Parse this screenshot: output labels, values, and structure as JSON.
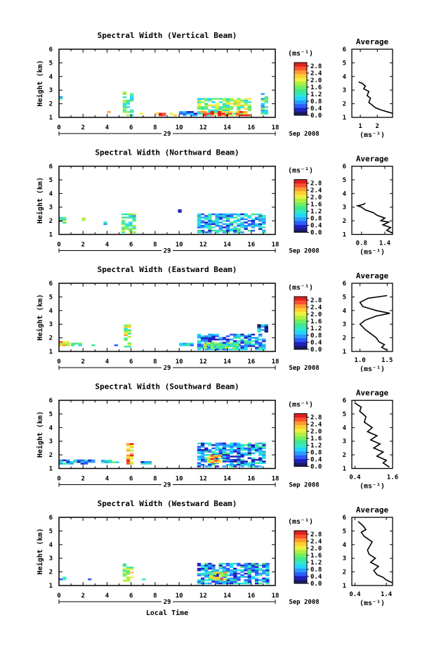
{
  "figure": {
    "xlabel": "Local Time",
    "date_label": "Sep 2008",
    "day_label": "29",
    "colorbar_unit": "(ms⁻¹)",
    "avg_unit": "(ms⁻¹)",
    "avg_title": "Average",
    "colormap": [
      "#1a1a66",
      "#2020c0",
      "#2a5cff",
      "#2a9cff",
      "#20d6ff",
      "#30e8c8",
      "#40e890",
      "#70f060",
      "#b0f040",
      "#f0f040",
      "#ffd030",
      "#ff9a30",
      "#ff5030",
      "#e02020"
    ]
  },
  "chart_data": [
    {
      "type": "heatmap",
      "title": "Spectral Width (Vertical Beam)",
      "ylabel": "Height (km)",
      "xlim": [
        0,
        18
      ],
      "ylim": [
        1,
        6
      ],
      "x_ticks": [
        0,
        2,
        4,
        6,
        8,
        10,
        12,
        14,
        16,
        18
      ],
      "y_ticks": [
        1,
        2,
        3,
        4,
        5,
        6
      ],
      "colorbar_ticks": [
        "0.0",
        "0.4",
        "0.8",
        "1.2",
        "1.6",
        "2.0",
        "2.4",
        "2.8"
      ],
      "colorbar_range": [
        0,
        3.0
      ],
      "clusters": [
        {
          "x": [
            0.0,
            0.3
          ],
          "y": [
            2.2,
            2.5
          ],
          "v": 1.2
        },
        {
          "x": [
            4.0,
            4.3
          ],
          "y": [
            1.1,
            1.4
          ],
          "v": 2.6
        },
        {
          "x": [
            5.3,
            6.1
          ],
          "y": [
            1.1,
            2.9
          ],
          "v": 1.4
        },
        {
          "x": [
            6.7,
            7.0
          ],
          "y": [
            1.1,
            1.3
          ],
          "v": 2.2
        },
        {
          "x": [
            8.0,
            9.6
          ],
          "y": [
            1.1,
            1.3
          ],
          "v": 2.6
        },
        {
          "x": [
            10.0,
            11.5
          ],
          "y": [
            1.1,
            1.4
          ],
          "v": 0.9
        },
        {
          "x": [
            11.5,
            15.9
          ],
          "y": [
            1.1,
            2.4
          ],
          "v": 1.6
        },
        {
          "x": [
            11.7,
            15.9
          ],
          "y": [
            1.1,
            1.4
          ],
          "v": 2.8
        },
        {
          "x": [
            16.8,
            17.3
          ],
          "y": [
            1.1,
            2.7
          ],
          "v": 1.2
        }
      ],
      "average": {
        "xlim": [
          0.5,
          2.9
        ],
        "x_ticks": [
          "1",
          "2"
        ],
        "x_tick_values": [
          1,
          2
        ],
        "x": [
          2.9,
          2.6,
          2.2,
          1.9,
          1.7,
          1.5,
          1.6,
          1.4,
          1.5,
          1.2,
          1.3,
          1.1,
          0.9
        ],
        "y": [
          1.3,
          1.4,
          1.55,
          1.7,
          1.9,
          2.1,
          2.4,
          2.6,
          2.9,
          3.1,
          3.3,
          3.5,
          3.6
        ]
      }
    },
    {
      "type": "heatmap",
      "title": "Spectral Width (Northward Beam)",
      "ylabel": "Height (km)",
      "xlim": [
        0,
        18
      ],
      "ylim": [
        1,
        6
      ],
      "x_ticks": [
        0,
        2,
        4,
        6,
        8,
        10,
        12,
        14,
        16,
        18
      ],
      "y_ticks": [
        1,
        2,
        3,
        4,
        5,
        6
      ],
      "colorbar_ticks": [
        "0.0",
        "0.4",
        "0.8",
        "1.2",
        "1.6",
        "2.0",
        "2.4",
        "2.8"
      ],
      "colorbar_range": [
        0,
        3.0
      ],
      "clusters": [
        {
          "x": [
            0.0,
            0.5
          ],
          "y": [
            1.8,
            2.2
          ],
          "v": 1.4
        },
        {
          "x": [
            1.9,
            2.2
          ],
          "y": [
            2.0,
            2.2
          ],
          "v": 1.3
        },
        {
          "x": [
            3.7,
            4.0
          ],
          "y": [
            1.7,
            1.9
          ],
          "v": 1.2
        },
        {
          "x": [
            5.2,
            6.3
          ],
          "y": [
            1.1,
            2.5
          ],
          "v": 1.4
        },
        {
          "x": [
            9.9,
            10.1
          ],
          "y": [
            2.6,
            2.8
          ],
          "v": 0.4
        },
        {
          "x": [
            11.5,
            17.2
          ],
          "y": [
            1.1,
            2.5
          ],
          "v": 0.9
        }
      ],
      "average": {
        "xlim": [
          0.55,
          1.6
        ],
        "x_ticks": [
          "0.8",
          "1.4"
        ],
        "x_tick_values": [
          0.8,
          1.4
        ],
        "x": [
          1.6,
          1.45,
          1.55,
          1.35,
          1.5,
          1.3,
          1.4,
          1.2,
          1.1,
          0.9,
          0.8,
          0.7,
          0.85,
          0.9
        ],
        "y": [
          1.1,
          1.3,
          1.5,
          1.7,
          1.9,
          2.0,
          2.2,
          2.4,
          2.6,
          2.8,
          3.0,
          3.1,
          3.2,
          3.3
        ]
      }
    },
    {
      "type": "heatmap",
      "title": "Spectral Width (Eastward Beam)",
      "ylabel": "Height (km)",
      "xlim": [
        0,
        18
      ],
      "ylim": [
        1,
        6
      ],
      "x_ticks": [
        0,
        2,
        4,
        6,
        8,
        10,
        12,
        14,
        16,
        18
      ],
      "y_ticks": [
        1,
        2,
        3,
        4,
        5,
        6
      ],
      "colorbar_ticks": [
        "0.0",
        "0.4",
        "0.8",
        "1.2",
        "1.6",
        "2.0",
        "2.4",
        "2.8"
      ],
      "colorbar_range": [
        0,
        3.0
      ],
      "clusters": [
        {
          "x": [
            0.0,
            0.9
          ],
          "y": [
            1.4,
            1.7
          ],
          "v": 2.2
        },
        {
          "x": [
            1.0,
            1.8
          ],
          "y": [
            1.4,
            1.6
          ],
          "v": 1.2
        },
        {
          "x": [
            2.7,
            3.0
          ],
          "y": [
            1.4,
            1.6
          ],
          "v": 1.0
        },
        {
          "x": [
            4.6,
            4.8
          ],
          "y": [
            1.4,
            1.6
          ],
          "v": 1.0
        },
        {
          "x": [
            5.4,
            6.0
          ],
          "y": [
            1.3,
            2.9
          ],
          "v": 1.8
        },
        {
          "x": [
            10.0,
            11.0
          ],
          "y": [
            1.4,
            1.6
          ],
          "v": 1.0
        },
        {
          "x": [
            11.5,
            17.2
          ],
          "y": [
            1.1,
            2.2
          ],
          "v": 0.8
        },
        {
          "x": [
            12.0,
            15.0
          ],
          "y": [
            1.2,
            1.6
          ],
          "v": 1.6
        },
        {
          "x": [
            16.5,
            17.2
          ],
          "y": [
            2.4,
            3.0
          ],
          "v": 0.6
        }
      ],
      "average": {
        "xlim": [
          0.85,
          1.6
        ],
        "x_ticks": [
          "1.0",
          "1.5"
        ],
        "x_tick_values": [
          1.0,
          1.5
        ],
        "x": [
          1.5,
          1.4,
          1.45,
          1.35,
          1.3,
          1.2,
          1.1,
          1.0,
          1.1,
          1.3,
          1.55,
          1.3,
          1.05,
          1.0,
          1.15,
          1.5
        ],
        "y": [
          1.1,
          1.3,
          1.5,
          1.7,
          2.0,
          2.3,
          2.6,
          3.0,
          3.3,
          3.6,
          3.8,
          4.0,
          4.3,
          4.6,
          4.9,
          5.1
        ]
      }
    },
    {
      "type": "heatmap",
      "title": "Spectral Width (Southward Beam)",
      "ylabel": "Height (km)",
      "xlim": [
        0,
        18
      ],
      "ylim": [
        1,
        6
      ],
      "x_ticks": [
        0,
        2,
        4,
        6,
        8,
        10,
        12,
        14,
        16,
        18
      ],
      "y_ticks": [
        1,
        2,
        3,
        4,
        5,
        6
      ],
      "colorbar_ticks": [
        "0.0",
        "0.4",
        "0.8",
        "1.2",
        "1.6",
        "2.0",
        "2.4",
        "2.8"
      ],
      "colorbar_range": [
        0,
        3.0
      ],
      "clusters": [
        {
          "x": [
            0.0,
            2.8
          ],
          "y": [
            1.3,
            1.6
          ],
          "v": 0.9
        },
        {
          "x": [
            3.5,
            4.8
          ],
          "y": [
            1.4,
            1.6
          ],
          "v": 1.1
        },
        {
          "x": [
            5.6,
            6.0
          ],
          "y": [
            1.3,
            2.8
          ],
          "v": 2.4
        },
        {
          "x": [
            6.8,
            7.6
          ],
          "y": [
            1.3,
            1.5
          ],
          "v": 0.8
        },
        {
          "x": [
            11.5,
            17.2
          ],
          "y": [
            1.1,
            2.8
          ],
          "v": 0.8
        },
        {
          "x": [
            12.3,
            13.5
          ],
          "y": [
            1.4,
            2.0
          ],
          "v": 2.4
        }
      ],
      "average": {
        "xlim": [
          0.3,
          1.6
        ],
        "x_ticks": [
          "0.4",
          "1.6"
        ],
        "x_tick_values": [
          0.4,
          1.6
        ],
        "x": [
          1.5,
          1.3,
          1.4,
          1.1,
          1.3,
          1.0,
          1.2,
          0.9,
          1.1,
          0.8,
          0.95,
          0.7,
          0.75,
          0.55,
          0.6,
          0.4
        ],
        "y": [
          1.1,
          1.4,
          1.6,
          1.9,
          2.2,
          2.5,
          2.8,
          3.1,
          3.4,
          3.7,
          4.0,
          4.4,
          4.8,
          5.2,
          5.5,
          5.8
        ]
      }
    },
    {
      "type": "heatmap",
      "title": "Spectral Width (Westward Beam)",
      "ylabel": "Height (km)",
      "xlim": [
        0,
        18
      ],
      "ylim": [
        1,
        6
      ],
      "x_ticks": [
        0,
        2,
        4,
        6,
        8,
        10,
        12,
        14,
        16,
        18
      ],
      "y_ticks": [
        1,
        2,
        3,
        4,
        5,
        6
      ],
      "colorbar_ticks": [
        "0.0",
        "0.4",
        "0.8",
        "1.2",
        "1.6",
        "2.0",
        "2.4",
        "2.8"
      ],
      "colorbar_range": [
        0,
        3.0
      ],
      "clusters": [
        {
          "x": [
            0.0,
            0.5
          ],
          "y": [
            1.4,
            1.6
          ],
          "v": 1.1
        },
        {
          "x": [
            2.4,
            2.7
          ],
          "y": [
            1.4,
            1.6
          ],
          "v": 0.9
        },
        {
          "x": [
            5.3,
            6.0
          ],
          "y": [
            1.3,
            2.6
          ],
          "v": 1.8
        },
        {
          "x": [
            6.9,
            7.1
          ],
          "y": [
            1.4,
            1.5
          ],
          "v": 1.0
        },
        {
          "x": [
            11.5,
            17.4
          ],
          "y": [
            1.1,
            2.6
          ],
          "v": 0.8
        },
        {
          "x": [
            12.5,
            13.8
          ],
          "y": [
            1.4,
            2.0
          ],
          "v": 2.0
        }
      ],
      "average": {
        "xlim": [
          0.3,
          1.6
        ],
        "x_ticks": [
          "0.4",
          "1.4"
        ],
        "x_tick_values": [
          0.4,
          1.4
        ],
        "x": [
          1.6,
          1.4,
          1.3,
          1.1,
          1.0,
          1.15,
          0.9,
          1.05,
          0.85,
          0.8,
          0.95,
          0.7,
          0.6,
          0.75,
          0.65,
          0.5
        ],
        "y": [
          1.2,
          1.4,
          1.6,
          1.8,
          2.1,
          2.4,
          2.7,
          3.0,
          3.3,
          3.6,
          4.2,
          4.6,
          4.9,
          5.1,
          5.4,
          5.7
        ]
      }
    }
  ]
}
